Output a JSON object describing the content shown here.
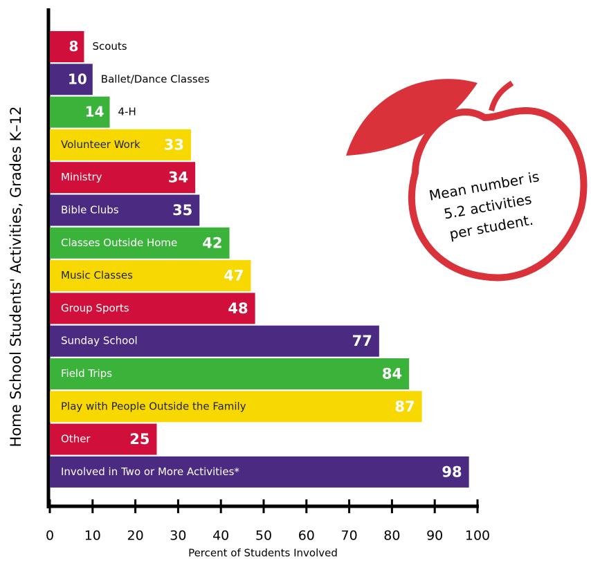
{
  "chart_data": {
    "type": "bar",
    "orientation": "horizontal",
    "y_axis_title": "Home School Students' Activities, Grades K–12",
    "x_axis_title": "Percent of Students Involved",
    "categories": [
      "Scouts",
      "Ballet/Dance Classes",
      "4-H",
      "Volunteer Work",
      "Ministry",
      "Bible Clubs",
      "Classes Outside Home",
      "Music Classes",
      "Group Sports",
      "Sunday School",
      "Field Trips",
      "Play with People Outside the Family",
      "Other",
      "Involved in Two or More Activities*"
    ],
    "values": [
      8,
      10,
      14,
      33,
      34,
      35,
      42,
      47,
      48,
      77,
      84,
      87,
      25,
      98
    ],
    "colors": [
      "#d0103a",
      "#4b2a82",
      "#3bb33b",
      "#f7d800",
      "#d0103a",
      "#4b2a82",
      "#3bb33b",
      "#f7d800",
      "#d0103a",
      "#4b2a82",
      "#3bb33b",
      "#f7d800",
      "#d0103a",
      "#4b2a82"
    ],
    "xlim": [
      0,
      100
    ],
    "xticks": [
      0,
      10,
      20,
      30,
      40,
      50,
      60,
      70,
      80,
      90,
      100
    ],
    "annotation": [
      "Mean number is",
      "5.2 activities",
      "per student."
    ]
  }
}
